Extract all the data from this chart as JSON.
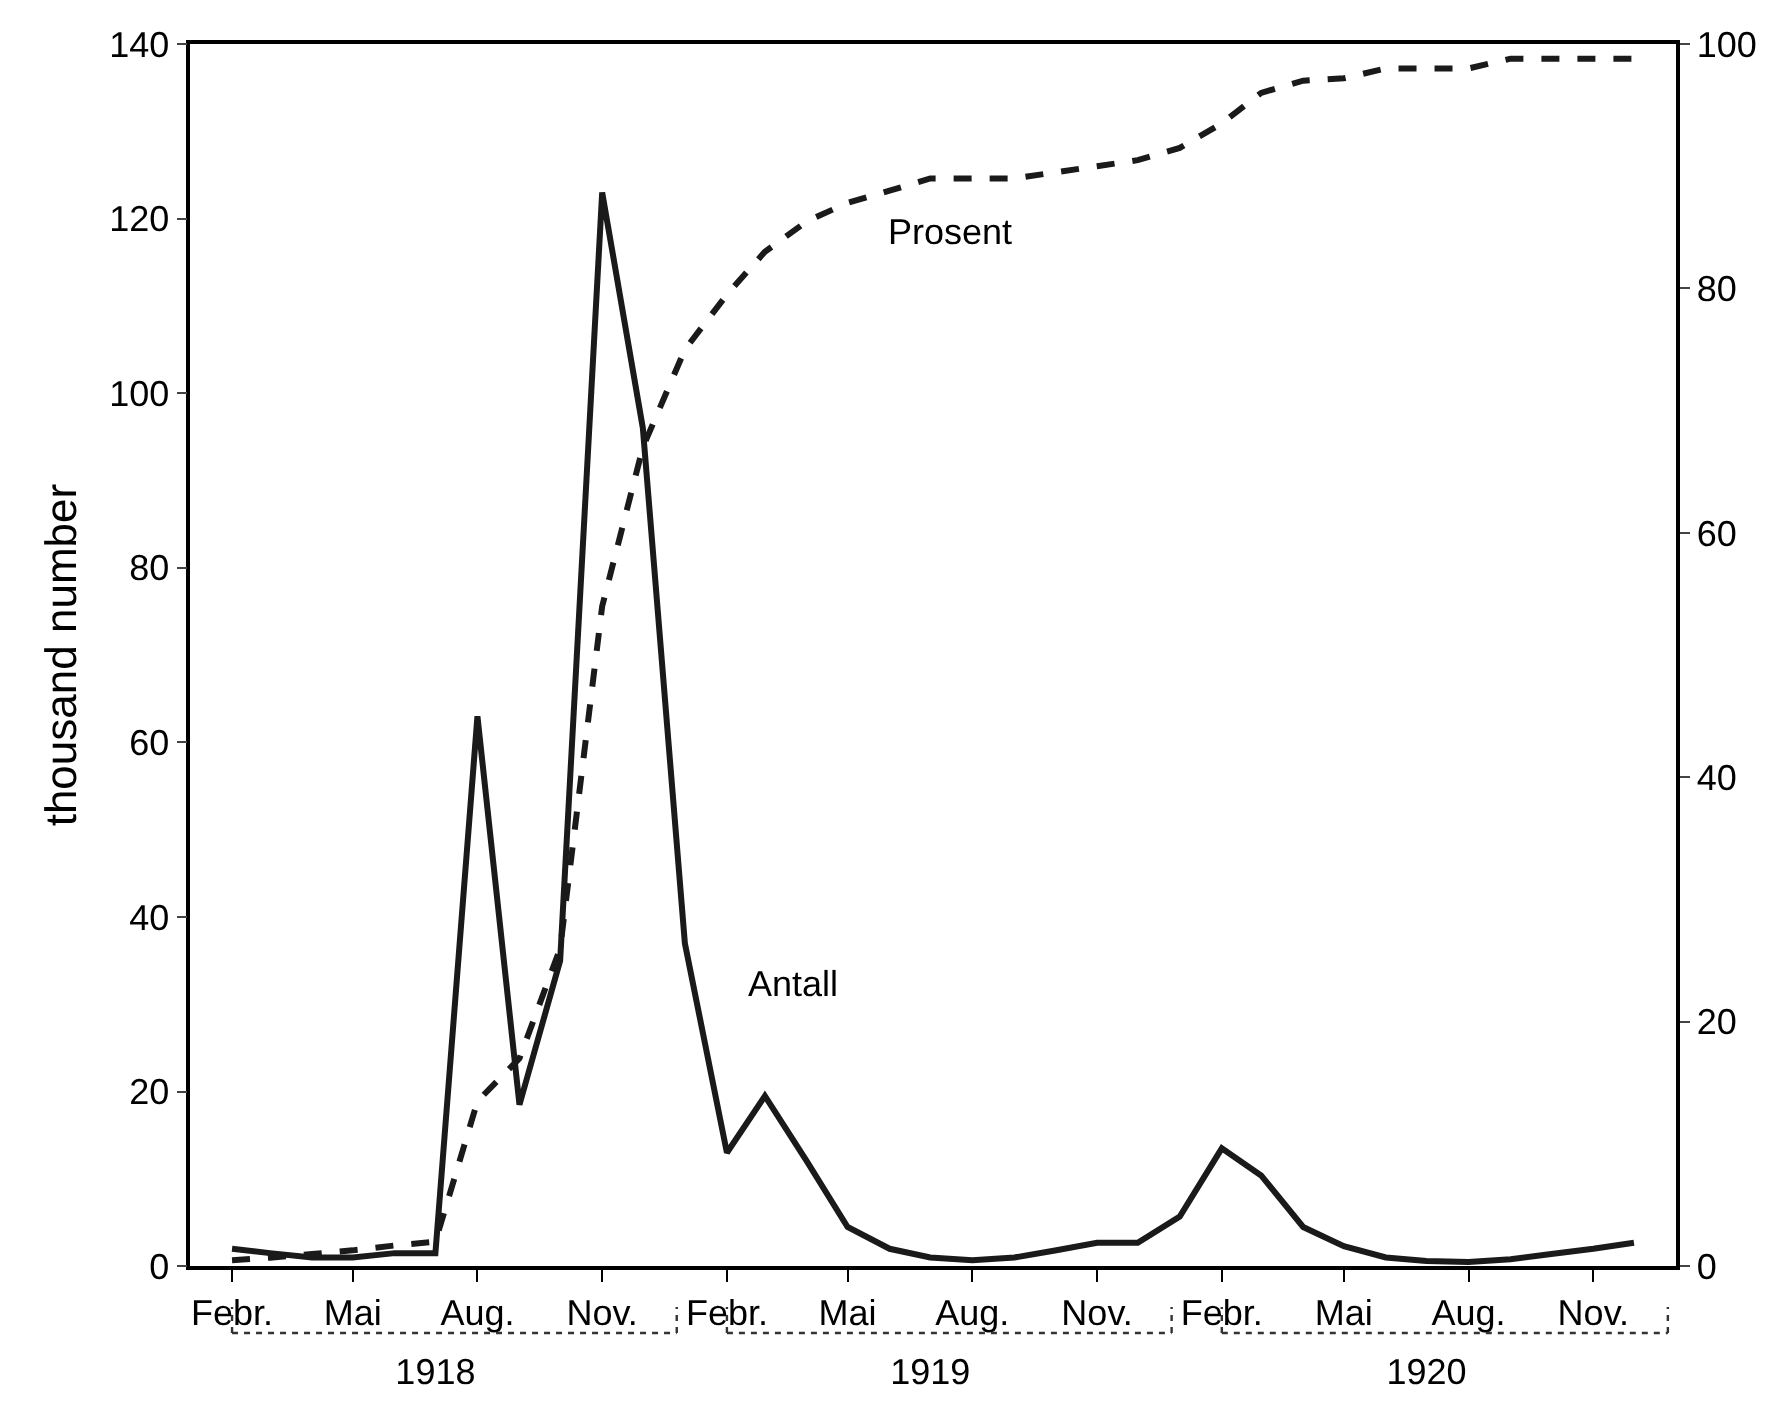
{
  "chart_data": {
    "type": "line",
    "ylabel": "thousand number",
    "x": [
      "1918-02",
      "1918-03",
      "1918-04",
      "1918-05",
      "1918-06",
      "1918-07",
      "1918-08",
      "1918-09",
      "1918-10",
      "1918-11",
      "1918-12",
      "1919-01",
      "1919-02",
      "1919-03",
      "1919-04",
      "1919-05",
      "1919-06",
      "1919-07",
      "1919-08",
      "1919-09",
      "1919-10",
      "1919-11",
      "1919-12",
      "1920-01",
      "1920-02",
      "1920-03",
      "1920-04",
      "1920-05",
      "1920-06",
      "1920-07",
      "1920-08",
      "1920-09",
      "1920-10",
      "1920-11",
      "1920-12"
    ],
    "series": [
      {
        "name": "Antall",
        "color": "#1a1a1a",
        "line_style": "solid",
        "values": [
          2,
          1.5,
          1,
          1,
          1.5,
          1.5,
          63,
          18.5,
          35,
          123,
          96,
          37,
          13,
          19.5,
          12,
          4.5,
          2,
          1,
          0.7,
          1,
          1.8,
          2.7,
          2.7,
          5.7,
          13.5,
          10.4,
          4.5,
          2.3,
          1,
          0.6,
          0.5,
          0.8,
          1.4,
          2,
          2.7
        ]
      },
      {
        "name": "Prosent",
        "color": "#1a1a1a",
        "line_style": "dashed",
        "axis": "y2",
        "values": [
          0.5,
          0.7,
          1,
          1.3,
          1.7,
          2,
          13.5,
          17,
          26,
          54,
          67,
          75,
          79.5,
          83,
          85.5,
          87,
          88,
          89,
          89,
          89,
          89.5,
          90,
          90.5,
          91.5,
          93.5,
          96,
          97,
          97.2,
          98,
          98,
          98,
          98.8,
          98.8,
          98.8,
          98.8
        ]
      }
    ],
    "xlim": [
      "1918-01",
      "1921-01"
    ],
    "xticks": [
      {
        "value": "1918-02",
        "label": "Febr."
      },
      {
        "value": "1918-05",
        "label": "Mai"
      },
      {
        "value": "1918-08",
        "label": "Aug."
      },
      {
        "value": "1918-11",
        "label": "Nov."
      },
      {
        "value": "1919-02",
        "label": "Febr."
      },
      {
        "value": "1919-05",
        "label": "Mai"
      },
      {
        "value": "1919-08",
        "label": "Aug."
      },
      {
        "value": "1919-11",
        "label": "Nov."
      },
      {
        "value": "1920-02",
        "label": "Febr."
      },
      {
        "value": "1920-05",
        "label": "Mai"
      },
      {
        "value": "1920-08",
        "label": "Aug."
      },
      {
        "value": "1920-11",
        "label": "Nov."
      }
    ],
    "x2lim": [
      "1918-01",
      "1921-01"
    ],
    "x2ticks": [
      {
        "value": "1918-07",
        "label": "1918"
      },
      {
        "value": "1919-07",
        "label": "1919"
      },
      {
        "value": "1920-07",
        "label": "1920"
      }
    ],
    "ylim": [
      0,
      140
    ],
    "yticks": [
      0,
      20,
      40,
      60,
      80,
      100,
      120,
      140
    ],
    "y2lim": [
      0,
      100
    ],
    "y2ticks": [
      0,
      20,
      40,
      60,
      80,
      100
    ],
    "legend": false,
    "marker": "none"
  }
}
